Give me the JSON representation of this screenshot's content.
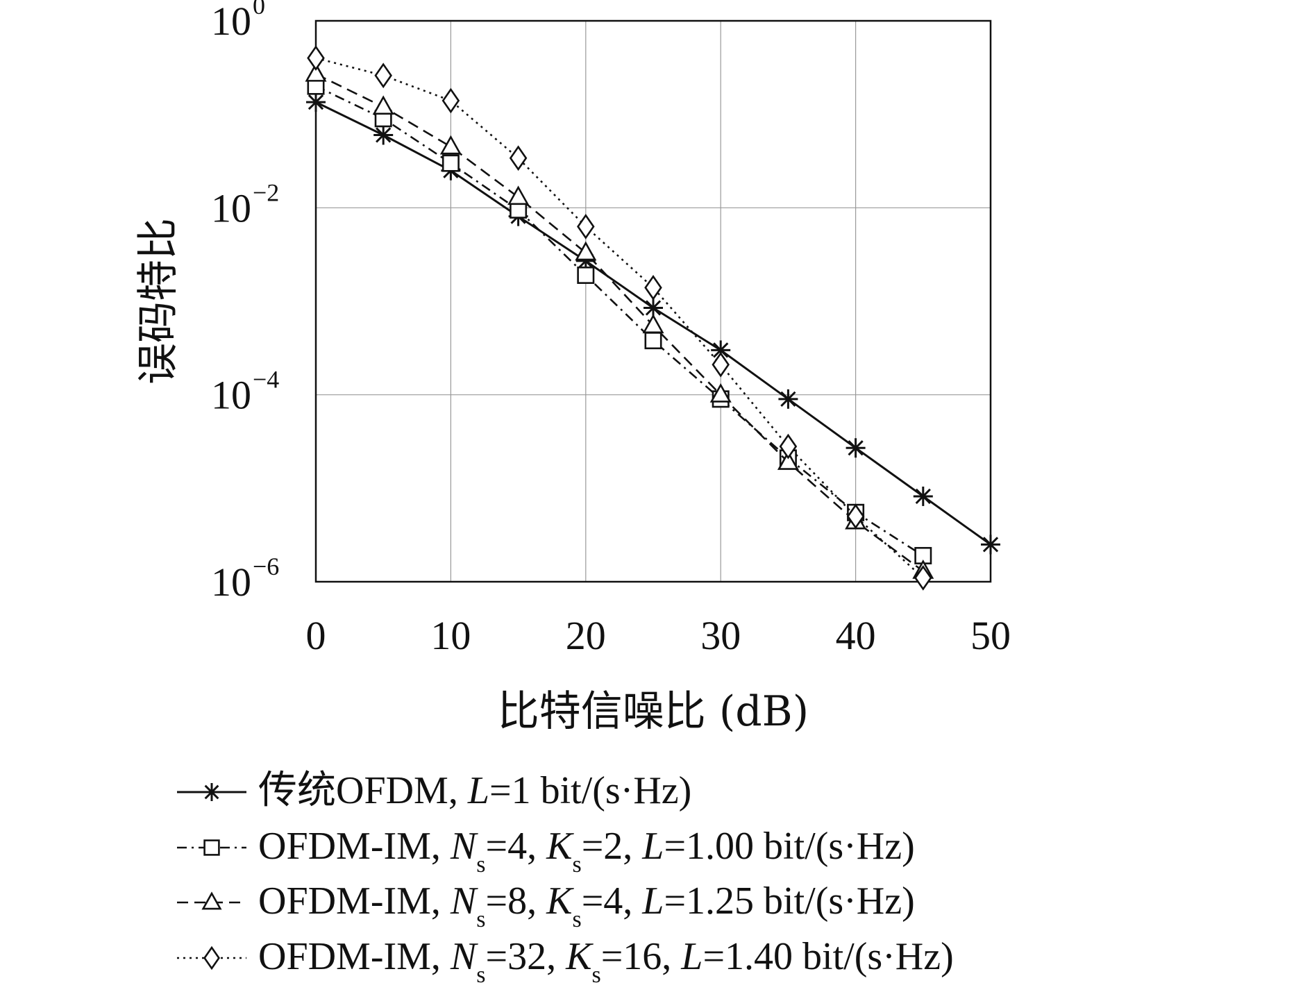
{
  "chart_data": {
    "type": "line",
    "title": "",
    "xlabel": "比特信噪比 (dB)",
    "ylabel": "误码特比",
    "xlim": [
      0,
      50
    ],
    "ylim": [
      1e-06,
      1
    ],
    "yscale": "log",
    "grid": true,
    "x_ticks": [
      0,
      10,
      20,
      30,
      40,
      50
    ],
    "x_tick_labels": [
      "0",
      "10",
      "20",
      "30",
      "40",
      "50"
    ],
    "y_ticks": [
      1,
      0.01,
      0.0001,
      1e-06
    ],
    "y_tick_labels": [
      {
        "base": "10",
        "exp": "0"
      },
      {
        "base": "10",
        "exp": "−2"
      },
      {
        "base": "10",
        "exp": "−4"
      },
      {
        "base": "10",
        "exp": "−6"
      }
    ],
    "legend_position": "bottom",
    "series": [
      {
        "name": "传统OFDM, L=1 bit/(s·Hz)",
        "legend_parts": [
          {
            "t": "传统OFDM, "
          },
          {
            "t": "L",
            "i": true
          },
          {
            "t": "=1 bit/(s·Hz)"
          }
        ],
        "marker": "asterisk",
        "dash": "solid",
        "x": [
          0,
          5,
          10,
          15,
          20,
          25,
          30,
          35,
          40,
          45,
          50
        ],
        "y": [
          0.135,
          0.06,
          0.025,
          0.0081,
          0.0027,
          0.00085,
          0.0003,
          9e-05,
          2.7e-05,
          8.2e-06,
          2.5e-06
        ]
      },
      {
        "name": "OFDM-IM, Ns=4, Ks=2, L=1.00 bit/(s·Hz)",
        "legend_parts": [
          {
            "t": "OFDM-IM, "
          },
          {
            "t": "N",
            "i": true
          },
          {
            "t": "s",
            "sub": true
          },
          {
            "t": "=4, "
          },
          {
            "t": "K",
            "i": true
          },
          {
            "t": "s",
            "sub": true
          },
          {
            "t": "=2, "
          },
          {
            "t": "L",
            "i": true
          },
          {
            "t": "=1.00 bit/(s·Hz)"
          }
        ],
        "marker": "square",
        "dash": "dashdot",
        "x": [
          0,
          5,
          10,
          15,
          20,
          25,
          30,
          35,
          40,
          45
        ],
        "y": [
          0.2,
          0.09,
          0.03,
          0.0095,
          0.0019,
          0.00038,
          9e-05,
          2.1e-05,
          5.5e-06,
          1.9e-06
        ]
      },
      {
        "name": "OFDM-IM, Ns=8, Ks=4, L=1.25 bit/(s·Hz)",
        "legend_parts": [
          {
            "t": "OFDM-IM, "
          },
          {
            "t": "N",
            "i": true
          },
          {
            "t": "s",
            "sub": true
          },
          {
            "t": "=8, "
          },
          {
            "t": "K",
            "i": true
          },
          {
            "t": "s",
            "sub": true
          },
          {
            "t": "=4, "
          },
          {
            "t": "L",
            "i": true
          },
          {
            "t": "=1.25 bit/(s·Hz)"
          }
        ],
        "marker": "triangle",
        "dash": "dashed",
        "x": [
          0,
          5,
          10,
          15,
          20,
          25,
          30,
          35,
          40,
          45
        ],
        "y": [
          0.27,
          0.12,
          0.045,
          0.013,
          0.0033,
          0.00055,
          0.0001,
          1.9e-05,
          4.4e-06,
          1.3e-06
        ]
      },
      {
        "name": "OFDM-IM, Ns=32, Ks=16, L=1.40 bit/(s·Hz)",
        "legend_parts": [
          {
            "t": "OFDM-IM, "
          },
          {
            "t": "N",
            "i": true
          },
          {
            "t": "s",
            "sub": true
          },
          {
            "t": "=32, "
          },
          {
            "t": "K",
            "i": true
          },
          {
            "t": "s",
            "sub": true
          },
          {
            "t": "=16, "
          },
          {
            "t": "L",
            "i": true
          },
          {
            "t": "=1.40 bit/(s·Hz)"
          }
        ],
        "marker": "diamond",
        "dash": "dotted",
        "x": [
          0,
          5,
          10,
          15,
          20,
          25,
          30,
          35,
          40,
          45
        ],
        "y": [
          0.4,
          0.26,
          0.14,
          0.034,
          0.0063,
          0.0014,
          0.00021,
          2.8e-05,
          5e-06,
          1.1e-06
        ]
      }
    ]
  }
}
